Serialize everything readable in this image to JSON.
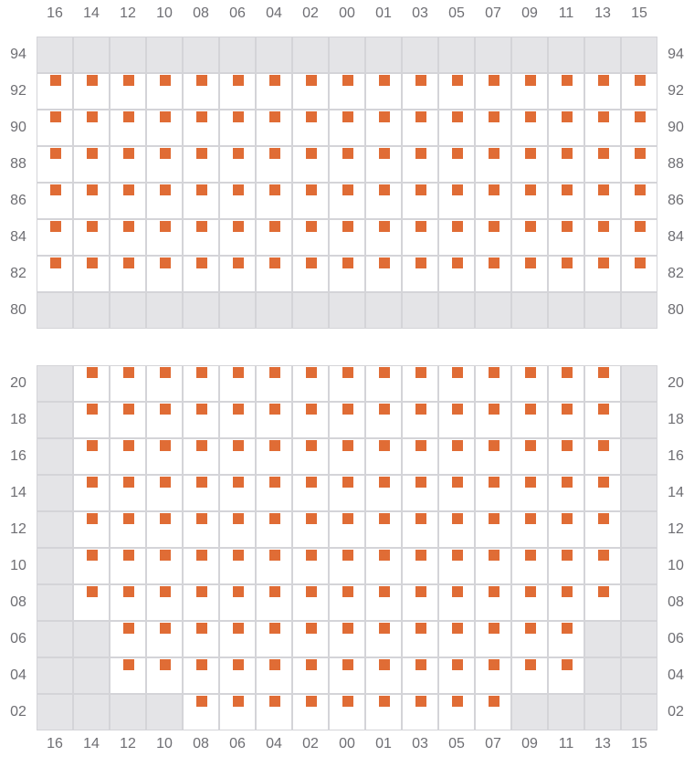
{
  "colors": {
    "seat": "#e06c35",
    "blocked": "#e4e4e7",
    "grid": "#d4d4d8",
    "label": "#6e6e73"
  },
  "columns": [
    "16",
    "14",
    "12",
    "10",
    "08",
    "06",
    "04",
    "02",
    "00",
    "01",
    "03",
    "05",
    "07",
    "09",
    "11",
    "13",
    "15"
  ],
  "sections": [
    {
      "rows": [
        {
          "label": "94",
          "seats": [
            0,
            0,
            0,
            0,
            0,
            0,
            0,
            0,
            0,
            0,
            0,
            0,
            0,
            0,
            0,
            0,
            0
          ]
        },
        {
          "label": "92",
          "seats": [
            1,
            1,
            1,
            1,
            1,
            1,
            1,
            1,
            1,
            1,
            1,
            1,
            1,
            1,
            1,
            1,
            1
          ]
        },
        {
          "label": "90",
          "seats": [
            1,
            1,
            1,
            1,
            1,
            1,
            1,
            1,
            1,
            1,
            1,
            1,
            1,
            1,
            1,
            1,
            1
          ]
        },
        {
          "label": "88",
          "seats": [
            1,
            1,
            1,
            1,
            1,
            1,
            1,
            1,
            1,
            1,
            1,
            1,
            1,
            1,
            1,
            1,
            1
          ]
        },
        {
          "label": "86",
          "seats": [
            1,
            1,
            1,
            1,
            1,
            1,
            1,
            1,
            1,
            1,
            1,
            1,
            1,
            1,
            1,
            1,
            1
          ]
        },
        {
          "label": "84",
          "seats": [
            1,
            1,
            1,
            1,
            1,
            1,
            1,
            1,
            1,
            1,
            1,
            1,
            1,
            1,
            1,
            1,
            1
          ]
        },
        {
          "label": "82",
          "seats": [
            1,
            1,
            1,
            1,
            1,
            1,
            1,
            1,
            1,
            1,
            1,
            1,
            1,
            1,
            1,
            1,
            1
          ]
        },
        {
          "label": "80",
          "seats": [
            0,
            0,
            0,
            0,
            0,
            0,
            0,
            0,
            0,
            0,
            0,
            0,
            0,
            0,
            0,
            0,
            0
          ]
        }
      ]
    },
    {
      "rows": [
        {
          "label": "20",
          "seats": [
            0,
            1,
            1,
            1,
            1,
            1,
            1,
            1,
            1,
            1,
            1,
            1,
            1,
            1,
            1,
            1,
            0
          ]
        },
        {
          "label": "18",
          "seats": [
            0,
            1,
            1,
            1,
            1,
            1,
            1,
            1,
            1,
            1,
            1,
            1,
            1,
            1,
            1,
            1,
            0
          ]
        },
        {
          "label": "16",
          "seats": [
            0,
            1,
            1,
            1,
            1,
            1,
            1,
            1,
            1,
            1,
            1,
            1,
            1,
            1,
            1,
            1,
            0
          ]
        },
        {
          "label": "14",
          "seats": [
            0,
            1,
            1,
            1,
            1,
            1,
            1,
            1,
            1,
            1,
            1,
            1,
            1,
            1,
            1,
            1,
            0
          ]
        },
        {
          "label": "12",
          "seats": [
            0,
            1,
            1,
            1,
            1,
            1,
            1,
            1,
            1,
            1,
            1,
            1,
            1,
            1,
            1,
            1,
            0
          ]
        },
        {
          "label": "10",
          "seats": [
            0,
            1,
            1,
            1,
            1,
            1,
            1,
            1,
            1,
            1,
            1,
            1,
            1,
            1,
            1,
            1,
            0
          ]
        },
        {
          "label": "08",
          "seats": [
            0,
            1,
            1,
            1,
            1,
            1,
            1,
            1,
            1,
            1,
            1,
            1,
            1,
            1,
            1,
            1,
            0
          ]
        },
        {
          "label": "06",
          "seats": [
            0,
            0,
            1,
            1,
            1,
            1,
            1,
            1,
            1,
            1,
            1,
            1,
            1,
            1,
            1,
            0,
            0
          ]
        },
        {
          "label": "04",
          "seats": [
            0,
            0,
            1,
            1,
            1,
            1,
            1,
            1,
            1,
            1,
            1,
            1,
            1,
            1,
            1,
            0,
            0
          ]
        },
        {
          "label": "02",
          "seats": [
            0,
            0,
            0,
            0,
            1,
            1,
            1,
            1,
            1,
            1,
            1,
            1,
            1,
            0,
            0,
            0,
            0
          ]
        }
      ]
    }
  ]
}
